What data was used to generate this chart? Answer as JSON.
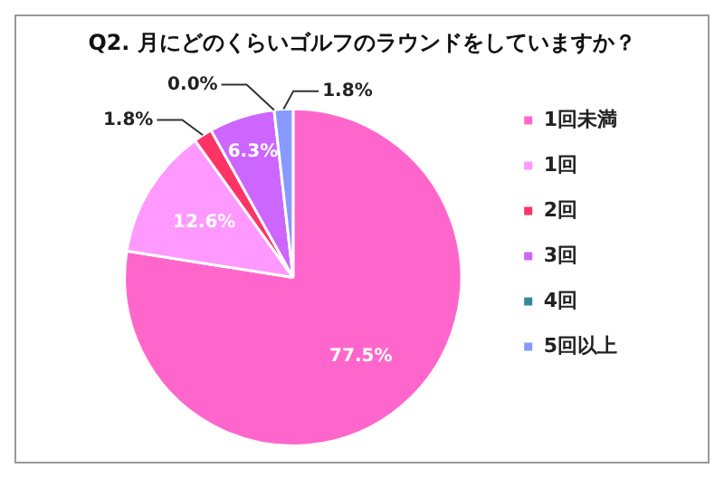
{
  "chart_data": {
    "type": "pie",
    "title": "Q2. 月にどのくらいゴルフのラウンドをしていますか？",
    "categories": [
      "1回未満",
      "1回",
      "2回",
      "3回",
      "4回",
      "5回以上"
    ],
    "values": [
      77.5,
      12.6,
      1.8,
      6.3,
      0.0,
      1.8
    ],
    "value_labels": [
      "77.5%",
      "12.6%",
      "1.8%",
      "6.3%",
      "0.0%",
      "1.8%"
    ],
    "colors": [
      "#ff66cc",
      "#ff99ff",
      "#ff3366",
      "#cc66ff",
      "#33889f",
      "#8899ff"
    ],
    "legend": "right"
  }
}
